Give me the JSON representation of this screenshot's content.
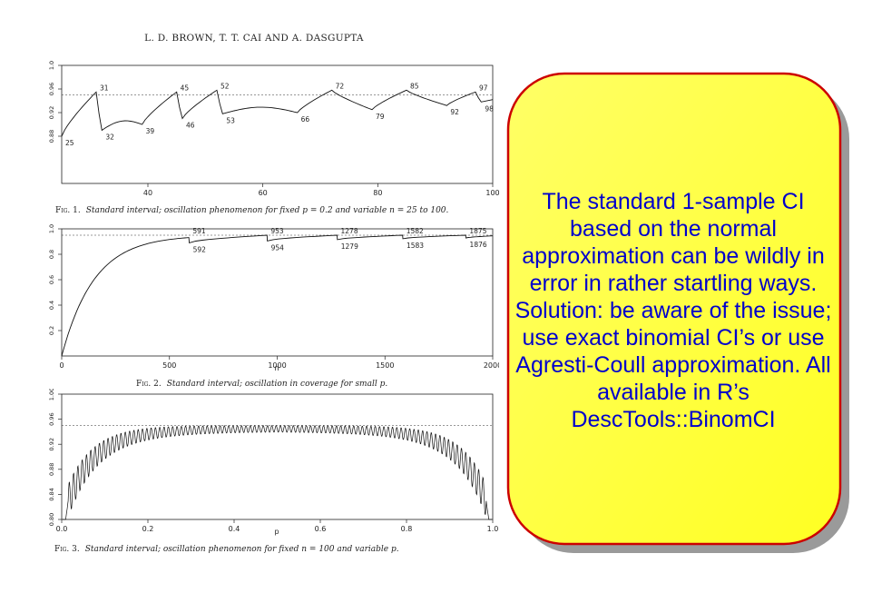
{
  "paper": {
    "header": "L. D. BROWN, T. T. CAI AND A. DASGUPTA"
  },
  "figures": {
    "fig1": {
      "label": "Fig. 1.",
      "caption": "Standard interval; oscillation phenomenon for fixed p = 0.2 and variable n = 25 to 100."
    },
    "fig2": {
      "label": "Fig. 2.",
      "caption": "Standard interval; oscillation in coverage for small p."
    },
    "fig3": {
      "label": "Fig. 3.",
      "caption": "Standard interval; oscillation phenomenon for fixed n = 100 and variable p."
    }
  },
  "callout": {
    "text": "The standard 1-sample CI based on the normal approximation can be wildly in error in rather startling ways. Solution: be aware of the issue; use exact binomial CI’s or use Agresti-Coull approximation.  All available in R’s DescTools::BinomCI",
    "text_color": "#0000cc",
    "fill_color": "#ffff33",
    "border_color": "#cc0000"
  },
  "chart_data": [
    {
      "type": "line",
      "xlim": [
        25,
        100
      ],
      "ylim": [
        0.8,
        1.0
      ],
      "reference_line": 0.95,
      "x_ticks": [
        40,
        60,
        80,
        100
      ],
      "y_ticks": [
        "0.88",
        "0.92",
        "0.96",
        "1.0"
      ],
      "peak_labels": [
        {
          "x": 31,
          "y": 0.955,
          "label": "31"
        },
        {
          "x": 45,
          "y": 0.955,
          "label": "45"
        },
        {
          "x": 52,
          "y": 0.958,
          "label": "52"
        },
        {
          "x": 72,
          "y": 0.958,
          "label": "72"
        },
        {
          "x": 85,
          "y": 0.958,
          "label": "85"
        },
        {
          "x": 97,
          "y": 0.955,
          "label": "97"
        }
      ],
      "trough_labels": [
        {
          "x": 25,
          "y": 0.88,
          "label": "25"
        },
        {
          "x": 32,
          "y": 0.89,
          "label": "32"
        },
        {
          "x": 39,
          "y": 0.9,
          "label": "39"
        },
        {
          "x": 46,
          "y": 0.91,
          "label": "46"
        },
        {
          "x": 53,
          "y": 0.918,
          "label": "53"
        },
        {
          "x": 66,
          "y": 0.92,
          "label": "66"
        },
        {
          "x": 79,
          "y": 0.925,
          "label": "79"
        },
        {
          "x": 92,
          "y": 0.932,
          "label": "92"
        },
        {
          "x": 98,
          "y": 0.938,
          "label": "98"
        }
      ]
    },
    {
      "type": "line",
      "xlabel": "n",
      "xlim": [
        0,
        2000
      ],
      "ylim": [
        0,
        1.0
      ],
      "reference_line": 0.95,
      "x_ticks": [
        0,
        500,
        1000,
        1500,
        2000
      ],
      "y_ticks": [
        "0.2",
        "0.4",
        "0.6",
        "0.8",
        "1.0"
      ],
      "peak_labels": [
        {
          "x": 591,
          "y": 0.95,
          "label": "591"
        },
        {
          "x": 953,
          "y": 0.95,
          "label": "953"
        },
        {
          "x": 1278,
          "y": 0.95,
          "label": "1278"
        },
        {
          "x": 1582,
          "y": 0.95,
          "label": "1582"
        },
        {
          "x": 1875,
          "y": 0.95,
          "label": "1875"
        }
      ],
      "trough_labels": [
        {
          "x": 592,
          "y": 0.89,
          "label": "592"
        },
        {
          "x": 954,
          "y": 0.905,
          "label": "954"
        },
        {
          "x": 1279,
          "y": 0.915,
          "label": "1279"
        },
        {
          "x": 1583,
          "y": 0.922,
          "label": "1583"
        },
        {
          "x": 1876,
          "y": 0.928,
          "label": "1876"
        }
      ]
    },
    {
      "type": "line",
      "xlabel": "p",
      "xlim": [
        0,
        1
      ],
      "ylim": [
        0.8,
        1.0
      ],
      "reference_line": 0.95,
      "x_ticks": [
        "0.0",
        "0.2",
        "0.4",
        "0.6",
        "0.8",
        "1.0"
      ],
      "y_ticks": [
        "0.80",
        "0.84",
        "0.88",
        "0.92",
        "0.96",
        "1.00"
      ]
    }
  ]
}
